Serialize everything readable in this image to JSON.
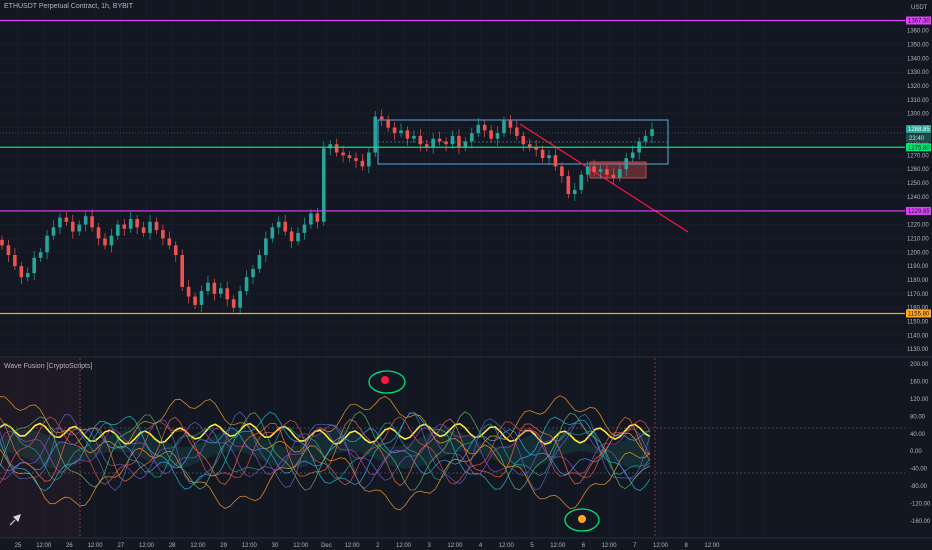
{
  "header": {
    "title": "ETHUSDT Perpetual Contract, 1h, BYBIT",
    "unit": "USDT"
  },
  "indicator": {
    "title": "Wave Fusion [CryptoScripts]"
  },
  "colors": {
    "background": "#131722",
    "grid": "#1f2330",
    "magenta": "#e040fb",
    "green": "#00e676",
    "orange": "#ffa726",
    "blue_channel": "#5aa9e6",
    "red_trend": "#ff1744",
    "bull": "#26a69a",
    "bear": "#ef5350"
  },
  "price_axis": {
    "ticks": [
      "1360.00",
      "1350.00",
      "1340.00",
      "1330.00",
      "1320.00",
      "1310.00",
      "1300.00",
      "1290.00",
      "1280.00",
      "1270.00",
      "1260.00",
      "1250.00",
      "1240.00",
      "1230.00",
      "1220.00",
      "1210.00",
      "1200.00",
      "1190.00",
      "1180.00",
      "1170.00",
      "1160.00",
      "1150.00",
      "1140.00",
      "1130.00"
    ],
    "level_tags": {
      "magenta_top": "1367.30",
      "current_price": "1288.85",
      "current_countdown": "23:40",
      "green_level": "1275.80",
      "magenta_bottom": "1229.85",
      "orange_level": "1155.80"
    }
  },
  "osc_axis": {
    "ticks": [
      "200.00",
      "160.00",
      "120.00",
      "80.00",
      "40.00",
      "0.00",
      "-40.00",
      "-80.00",
      "-120.00",
      "-160.00"
    ]
  },
  "time_axis": {
    "labels": [
      "25",
      "12:00",
      "26",
      "12:00",
      "27",
      "12:00",
      "28",
      "12:00",
      "29",
      "12:00",
      "30",
      "12:00",
      "Dec",
      "12:00",
      "2",
      "12:00",
      "3",
      "12:00",
      "4",
      "12:00",
      "5",
      "12:00",
      "6",
      "12:00",
      "7",
      "12:00",
      "8",
      "12:00"
    ]
  },
  "chart_data": {
    "type": "candlestick",
    "symbol": "ETHUSDT Perpetual Contract, 1h, BYBIT",
    "y_unit": "USDT",
    "ylim": [
      1128,
      1372
    ],
    "horizontal_levels": [
      {
        "name": "magenta-top-level",
        "value": 1367.3,
        "color": "#e040fb"
      },
      {
        "name": "green-level",
        "value": 1275.8,
        "color": "#00e676"
      },
      {
        "name": "magenta-bottom-level",
        "value": 1229.85,
        "color": "#e040fb"
      },
      {
        "name": "orange-level",
        "value": 1155.8,
        "color": "#ffa726"
      }
    ],
    "current_price": 1288.85,
    "candles": [
      1205,
      1198,
      1190,
      1182,
      1185,
      1196,
      1200,
      1212,
      1218,
      1225,
      1222,
      1215,
      1220,
      1226,
      1218,
      1210,
      1205,
      1212,
      1220,
      1217,
      1224,
      1218,
      1214,
      1222,
      1216,
      1210,
      1205,
      1198,
      1175,
      1168,
      1162,
      1172,
      1178,
      1170,
      1174,
      1166,
      1160,
      1172,
      1182,
      1188,
      1198,
      1210,
      1218,
      1222,
      1215,
      1208,
      1214,
      1220,
      1228,
      1222,
      1275,
      1278,
      1272,
      1270,
      1268,
      1266,
      1262,
      1272,
      1298,
      1296,
      1290,
      1286,
      1288,
      1282,
      1284,
      1278,
      1276,
      1282,
      1280,
      1278,
      1284,
      1276,
      1280,
      1286,
      1292,
      1288,
      1282,
      1286,
      1295,
      1290,
      1284,
      1278,
      1276,
      1274,
      1268,
      1270,
      1262,
      1255,
      1242,
      1245,
      1256,
      1262,
      1258,
      1260,
      1256,
      1254,
      1260,
      1268,
      1272,
      1280,
      1284,
      1288.85
    ]
  }
}
